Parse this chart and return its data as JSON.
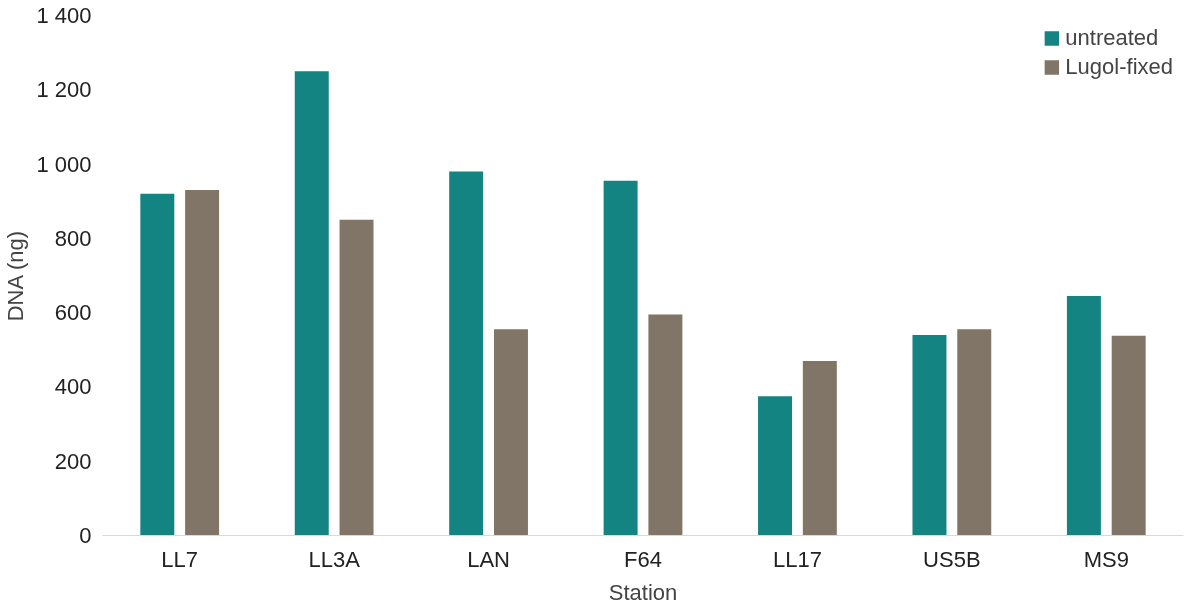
{
  "chart_data": {
    "type": "bar",
    "xlabel": "Station",
    "ylabel": "DNA (ng)",
    "categories": [
      "LL7",
      "LL3A",
      "LAN",
      "F64",
      "LL17",
      "US5B",
      "MS9"
    ],
    "series": [
      {
        "name": "untreated",
        "color": "#138482",
        "values": [
          920,
          1250,
          980,
          955,
          375,
          540,
          645
        ]
      },
      {
        "name": "Lugol-fixed",
        "color": "#817567",
        "values": [
          930,
          850,
          555,
          595,
          470,
          555,
          538
        ]
      }
    ],
    "ylim": [
      0,
      1400
    ],
    "yticks": [
      0,
      200,
      400,
      600,
      800,
      {
        "value": 1000,
        "label": "1 000"
      },
      {
        "value": 1200,
        "label": "1 200"
      },
      {
        "value": 1400,
        "label": "1 400"
      }
    ],
    "grid": false,
    "legend": "top right"
  }
}
